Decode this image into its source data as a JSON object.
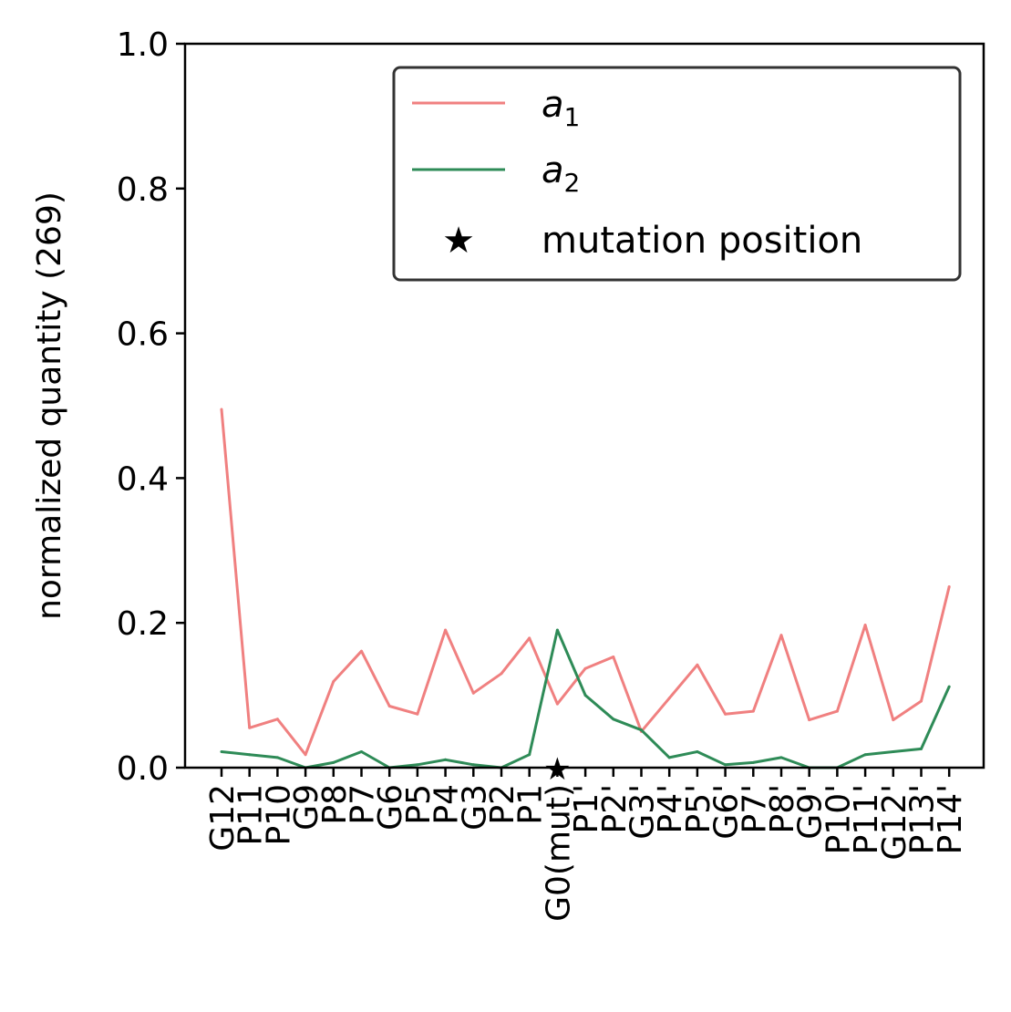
{
  "chart_data": {
    "type": "line",
    "categories": [
      "G12",
      "P11",
      "P10",
      "G9",
      "P8",
      "P7",
      "G6",
      "P5",
      "P4",
      "G3",
      "P2",
      "P1",
      "G0(mut)",
      "P1'",
      "P2'",
      "G3'",
      "P4'",
      "P5'",
      "G6'",
      "P7'",
      "P8'",
      "G9'",
      "P10'",
      "P11'",
      "G12'",
      "P13'",
      "P14'"
    ],
    "series": [
      {
        "name": "a",
        "subscript": "1",
        "color": "#f08080",
        "values": [
          0.495,
          0.055,
          0.067,
          0.018,
          0.119,
          0.161,
          0.085,
          0.074,
          0.19,
          0.103,
          0.13,
          0.179,
          0.088,
          0.137,
          0.153,
          0.05,
          0.096,
          0.142,
          0.074,
          0.078,
          0.183,
          0.066,
          0.078,
          0.197,
          0.066,
          0.092,
          0.25
        ]
      },
      {
        "name": "a",
        "subscript": "2",
        "color": "#2e8b57",
        "values": [
          0.022,
          0.018,
          0.014,
          0.0,
          0.007,
          0.022,
          0.0,
          0.004,
          0.011,
          0.004,
          0.0,
          0.018,
          0.19,
          0.1,
          0.067,
          0.052,
          0.014,
          0.022,
          0.004,
          0.007,
          0.014,
          0.0,
          0.0,
          0.018,
          0.022,
          0.026,
          0.112
        ]
      }
    ],
    "markers": [
      {
        "name": "mutation position",
        "category": "G0(mut)",
        "value": 0.0,
        "color": "#ff0000",
        "symbol": "*"
      }
    ],
    "ylabel": "normalized quantity (269)",
    "xlabel": "",
    "title": "",
    "ylim": [
      0,
      1.0
    ],
    "yticks": [
      0.0,
      0.2,
      0.4,
      0.6,
      0.8,
      1.0
    ],
    "ytick_labels": [
      "0.0",
      "0.2",
      "0.4",
      "0.6",
      "0.8",
      "1.0"
    ],
    "legend_position": "upper-right",
    "grid": false
  }
}
